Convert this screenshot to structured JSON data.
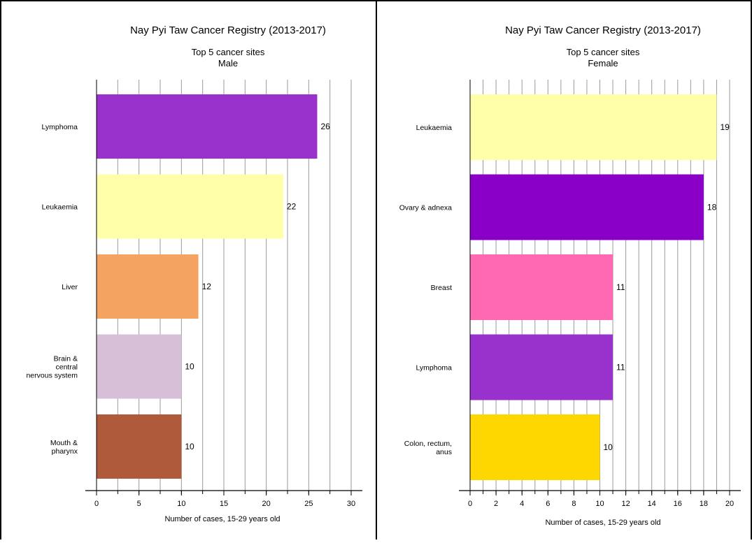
{
  "chart_data": [
    {
      "type": "bar",
      "orientation": "horizontal",
      "title": "Nay Pyi Taw Cancer Registry (2013-2017)",
      "subtitle": "Top 5 cancer sites",
      "group": "Male",
      "xlabel": "Number of cases, 15-29 years old",
      "xlim": [
        0,
        30
      ],
      "xticks": [
        0,
        5,
        10,
        15,
        20,
        25,
        30
      ],
      "grid_step": 2.5,
      "grid": true,
      "categories": [
        [
          "Lymphoma"
        ],
        [
          "Leukaemia"
        ],
        [
          "Liver"
        ],
        [
          "Brain &",
          "central",
          "nervous system"
        ],
        [
          "Mouth &",
          "pharynx"
        ]
      ],
      "values": [
        26,
        22,
        12,
        10,
        10
      ],
      "colors": [
        "#9932CC",
        "#FFFFAA",
        "#F4A460",
        "#D8BFD8",
        "#B05A3C"
      ],
      "labels": [
        "26",
        "22",
        "12",
        "10",
        "10"
      ]
    },
    {
      "type": "bar",
      "orientation": "horizontal",
      "title": "Nay Pyi Taw Cancer Registry (2013-2017)",
      "subtitle": "Top 5 cancer sites",
      "group": "Female",
      "xlabel": "Number of cases, 15-29 years old",
      "xlim": [
        0,
        20
      ],
      "xticks": [
        0,
        2,
        4,
        6,
        8,
        10,
        12,
        14,
        16,
        18,
        20
      ],
      "grid_step": 1,
      "grid": true,
      "categories": [
        [
          "Leukaemia"
        ],
        [
          "Ovary & adnexa"
        ],
        [
          "Breast"
        ],
        [
          "Lymphoma"
        ],
        [
          "Colon, rectum,",
          "anus"
        ]
      ],
      "values": [
        19,
        18,
        11,
        11,
        10
      ],
      "colors": [
        "#FFFFAA",
        "#8B00C8",
        "#FF69B4",
        "#9932CC",
        "#FFD700"
      ],
      "labels": [
        "19",
        "18",
        "11",
        "11",
        "10"
      ]
    }
  ]
}
